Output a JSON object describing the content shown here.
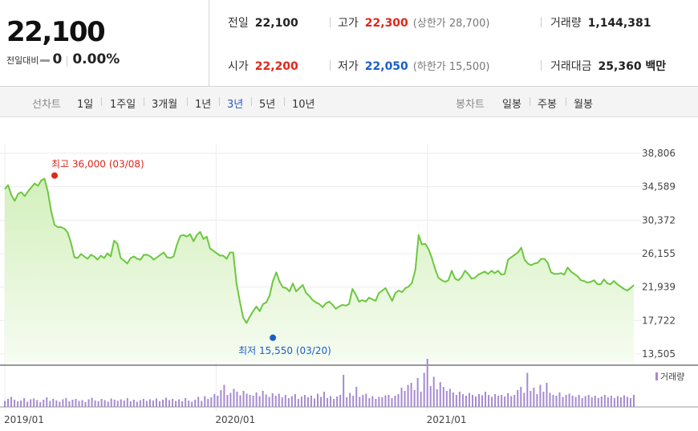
{
  "quote": {
    "current_price": "22,100",
    "change_label": "전일대비",
    "change_value": "0",
    "change_pct": "0.00%"
  },
  "stats": {
    "prev_close": {
      "label": "전일",
      "value": "22,100"
    },
    "open": {
      "label": "시가",
      "value": "22,200"
    },
    "high": {
      "label": "고가",
      "value": "22,300",
      "limit": "(상한가 28,700)"
    },
    "low": {
      "label": "저가",
      "value": "22,050",
      "limit": "(하한가 15,500)"
    },
    "volume": {
      "label": "거래량",
      "value": "1,144,381"
    },
    "amount": {
      "label": "거래대금",
      "value": "25,360 백만"
    }
  },
  "tabs": {
    "line_label": "선차트",
    "line_periods": [
      "1일",
      "1주일",
      "3개월",
      "1년",
      "3년",
      "5년",
      "10년"
    ],
    "active_period": "3년",
    "candle_label": "봉차트",
    "candle_periods": [
      "일봉",
      "주봉",
      "월봉"
    ]
  },
  "colors": {
    "line": "#6cc73f",
    "fill_top": "#d3f0bc",
    "fill_bottom": "#f6fcf1",
    "high_marker": "#e0271a",
    "low_marker": "#1a5fc8",
    "volume_bar": "#a58ad0"
  },
  "chart_data": {
    "type": "area",
    "x_start": "2019-01",
    "x_end": "2021-12",
    "x_tick_labels": [
      "2019/01",
      "2020/01",
      "2021/01"
    ],
    "y_ticks": [
      13505,
      17722,
      21939,
      26155,
      30372,
      34589,
      38806
    ],
    "y_tick_labels": [
      "13,505",
      "17,722",
      "21,939",
      "26,155",
      "30,372",
      "34,589",
      "38,806"
    ],
    "ylim": [
      13505,
      38806
    ],
    "grid": true,
    "annotation_high": {
      "label": "최고",
      "value": 36000,
      "value_text": "36,000",
      "date": "(03/08)",
      "date_value": "2019-03-08"
    },
    "annotation_low": {
      "label": "최저",
      "value": 15550,
      "value_text": "15,550",
      "date": "(03/20)",
      "date_value": "2020-03-20"
    },
    "series": [
      {
        "values": [
          34300,
          34800,
          33500,
          32800,
          33700,
          33900,
          33400,
          34000,
          34500,
          35000,
          34700,
          35400,
          35600,
          34000,
          31500,
          29800,
          29500,
          29500,
          29300,
          28800,
          27500,
          25700,
          25600,
          26100,
          25800,
          25500,
          26000,
          25800,
          25400,
          25900,
          25600,
          26200,
          25800,
          27800,
          27400,
          25600,
          25300,
          24900,
          25600,
          25800,
          25500,
          25400,
          26000,
          26000,
          25800,
          25400,
          25700,
          26000,
          26300,
          25700,
          25600,
          25800,
          27300,
          28400,
          28500,
          28300,
          28600,
          27700,
          28500,
          28900,
          28000,
          28300,
          26800,
          26500,
          26200,
          25900,
          25900,
          25500,
          26300,
          26300,
          22400,
          20100,
          18100,
          17400,
          18200,
          18900,
          19500,
          18900,
          19800,
          20000,
          20900,
          22700,
          23800,
          22600,
          21900,
          21800,
          21400,
          22400,
          21400,
          21800,
          22200,
          21200,
          20800,
          20300,
          20000,
          19800,
          19400,
          19900,
          20100,
          19700,
          19200,
          19500,
          19700,
          19600,
          19800,
          21700,
          21000,
          20100,
          20300,
          20100,
          20600,
          20400,
          20200,
          21200,
          21500,
          21800,
          21000,
          20200,
          21200,
          21500,
          21300,
          21800,
          22000,
          22500,
          24100,
          28500,
          27300,
          27400,
          26700,
          25600,
          24200,
          23100,
          22800,
          22600,
          22800,
          24000,
          23000,
          22800,
          23200,
          24000,
          23600,
          23000,
          23100,
          23500,
          23700,
          23900,
          23600,
          24000,
          23700,
          24000,
          23500,
          23600,
          25400,
          25700,
          26000,
          26300,
          26900,
          25400,
          24900,
          24700,
          24900,
          25000,
          25500,
          25500,
          25000,
          23800,
          23600,
          23600,
          23700,
          23500,
          24400,
          23900,
          23600,
          23300,
          22800,
          22700,
          22500,
          22600,
          22800,
          22300,
          22300,
          22900,
          22400,
          22300,
          22700,
          22300,
          22000,
          21700,
          21500,
          21800,
          22200
        ]
      },
      {
        "name": "거래량",
        "type": "bar",
        "values": [
          0.15,
          0.2,
          0.25,
          0.18,
          0.14,
          0.16,
          0.22,
          0.13,
          0.19,
          0.21,
          0.17,
          0.12,
          0.18,
          0.24,
          0.15,
          0.2,
          0.16,
          0.13,
          0.19,
          0.22,
          0.14,
          0.18,
          0.2,
          0.15,
          0.17,
          0.12,
          0.19,
          0.23,
          0.16,
          0.14,
          0.2,
          0.17,
          0.13,
          0.21,
          0.18,
          0.15,
          0.19,
          0.16,
          0.22,
          0.14,
          0.18,
          0.13,
          0.17,
          0.2,
          0.15,
          0.19,
          0.16,
          0.21,
          0.14,
          0.18,
          0.23,
          0.17,
          0.2,
          0.15,
          0.19,
          0.14,
          0.22,
          0.16,
          0.13,
          0.18,
          0.25,
          0.15,
          0.27,
          0.2,
          0.24,
          0.32,
          0.28,
          0.42,
          0.55,
          0.3,
          0.35,
          0.45,
          0.38,
          0.29,
          0.4,
          0.33,
          0.3,
          0.28,
          0.36,
          0.27,
          0.4,
          0.31,
          0.25,
          0.34,
          0.28,
          0.33,
          0.24,
          0.3,
          0.22,
          0.27,
          0.32,
          0.2,
          0.26,
          0.3,
          0.24,
          0.28,
          0.21,
          0.33,
          0.25,
          0.38,
          0.22,
          0.27,
          0.2,
          0.26,
          0.3,
          0.8,
          0.24,
          0.35,
          0.28,
          0.5,
          0.25,
          0.3,
          0.33,
          0.22,
          0.27,
          0.2,
          0.25,
          0.24,
          0.29,
          0.3,
          0.22,
          0.28,
          0.32,
          0.48,
          0.4,
          0.55,
          0.6,
          0.42,
          0.72,
          0.38,
          0.85,
          1.2,
          0.52,
          0.75,
          0.44,
          0.62,
          0.5,
          0.4,
          0.45,
          0.36,
          0.3,
          0.38,
          0.32,
          0.28,
          0.35,
          0.3,
          0.26,
          0.32,
          0.29,
          0.38,
          0.3,
          0.25,
          0.32,
          0.28,
          0.3,
          0.26,
          0.34,
          0.27,
          0.3,
          0.42,
          0.5,
          0.35,
          0.85,
          0.4,
          0.48,
          0.32,
          0.55,
          0.38,
          0.6,
          0.35,
          0.3,
          0.28,
          0.36,
          0.25,
          0.3,
          0.33,
          0.28,
          0.25,
          0.3,
          0.22,
          0.27,
          0.3,
          0.24,
          0.28,
          0.22,
          0.26,
          0.3,
          0.24,
          0.28,
          0.22,
          0.27,
          0.24,
          0.29,
          0.25,
          0.22,
          0.3
        ]
      }
    ]
  }
}
